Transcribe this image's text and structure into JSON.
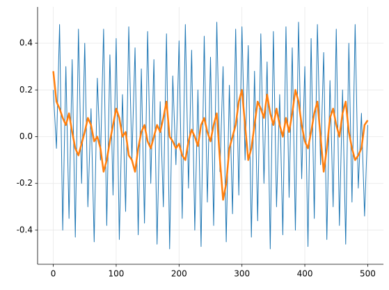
{
  "chart_data": {
    "type": "line",
    "x": [
      0,
      5,
      10,
      15,
      20,
      25,
      30,
      35,
      40,
      45,
      50,
      55,
      60,
      65,
      70,
      75,
      80,
      85,
      90,
      95,
      100,
      105,
      110,
      115,
      120,
      125,
      130,
      135,
      140,
      145,
      150,
      155,
      160,
      165,
      170,
      175,
      180,
      185,
      190,
      195,
      200,
      205,
      210,
      215,
      220,
      225,
      230,
      235,
      240,
      245,
      250,
      255,
      260,
      265,
      270,
      275,
      280,
      285,
      290,
      295,
      300,
      305,
      310,
      315,
      320,
      325,
      330,
      335,
      340,
      345,
      350,
      355,
      360,
      365,
      370,
      375,
      380,
      385,
      390,
      395,
      400,
      405,
      410,
      415,
      420,
      425,
      430,
      435,
      440,
      445,
      450,
      455,
      460,
      465,
      470,
      475,
      480,
      485,
      490,
      495,
      500
    ],
    "series": [
      {
        "color": "#1f77b4",
        "width": 1,
        "values": [
          0.2,
          -0.05,
          0.48,
          -0.4,
          0.3,
          -0.35,
          0.33,
          -0.43,
          0.46,
          -0.2,
          0.4,
          -0.3,
          0.12,
          -0.45,
          0.25,
          -0.1,
          0.46,
          -0.38,
          0.35,
          -0.25,
          0.42,
          -0.44,
          0.18,
          -0.32,
          0.47,
          -0.1,
          0.38,
          -0.42,
          0.29,
          -0.37,
          0.45,
          -0.2,
          0.33,
          -0.46,
          0.15,
          -0.3,
          0.44,
          -0.48,
          0.26,
          -0.12,
          0.41,
          -0.35,
          0.48,
          -0.22,
          0.37,
          -0.4,
          0.2,
          -0.47,
          0.43,
          -0.28,
          0.34,
          -0.38,
          0.49,
          -0.15,
          0.3,
          -0.45,
          0.22,
          -0.33,
          0.46,
          -0.25,
          0.47,
          -0.1,
          0.39,
          -0.43,
          0.28,
          -0.36,
          0.44,
          -0.2,
          0.32,
          -0.48,
          0.45,
          -0.3,
          0.18,
          -0.42,
          0.47,
          -0.26,
          0.38,
          -0.4,
          0.49,
          -0.18,
          0.3,
          -0.47,
          0.42,
          -0.35,
          0.48,
          -0.12,
          0.36,
          -0.44,
          0.24,
          -0.3,
          0.46,
          -0.38,
          0.2,
          -0.46,
          0.4,
          -0.28,
          0.48,
          -0.22,
          0.1,
          -0.34,
          0.05
        ]
      },
      {
        "color": "#ff7f0e",
        "width": 2.5,
        "values": [
          0.28,
          0.15,
          0.12,
          0.08,
          0.05,
          0.1,
          0.02,
          -0.05,
          -0.08,
          -0.03,
          0.02,
          0.08,
          0.05,
          -0.02,
          0.0,
          -0.05,
          -0.15,
          -0.1,
          -0.02,
          0.05,
          0.12,
          0.08,
          0.0,
          0.02,
          -0.08,
          -0.1,
          -0.15,
          -0.05,
          0.02,
          0.05,
          -0.02,
          -0.05,
          0.0,
          0.05,
          0.02,
          0.08,
          0.15,
          0.0,
          -0.02,
          -0.05,
          -0.03,
          -0.08,
          -0.1,
          -0.02,
          0.03,
          0.0,
          -0.04,
          0.05,
          0.08,
          0.02,
          -0.02,
          0.05,
          0.1,
          -0.1,
          -0.27,
          -0.2,
          -0.05,
          0.0,
          0.05,
          0.15,
          0.2,
          0.05,
          -0.1,
          -0.05,
          0.05,
          0.15,
          0.12,
          0.08,
          0.18,
          0.1,
          0.05,
          0.12,
          0.05,
          0.0,
          0.08,
          0.02,
          0.1,
          0.2,
          0.15,
          0.05,
          -0.02,
          -0.05,
          0.02,
          0.1,
          0.15,
          0.0,
          -0.15,
          -0.05,
          0.08,
          0.12,
          0.05,
          0.0,
          0.1,
          0.15,
          0.02,
          -0.05,
          -0.1,
          -0.08,
          -0.05,
          0.05,
          0.07
        ]
      }
    ],
    "xlim": [
      -25,
      525
    ],
    "xticks": [
      0,
      100,
      200,
      300,
      400,
      500
    ],
    "ylim": [
      -0.546,
      0.555
    ],
    "yticks": [
      -0.4,
      -0.2,
      {
        "value": 0,
        "label": "0.0"
      },
      0.2,
      0.4
    ],
    "grid": true
  }
}
